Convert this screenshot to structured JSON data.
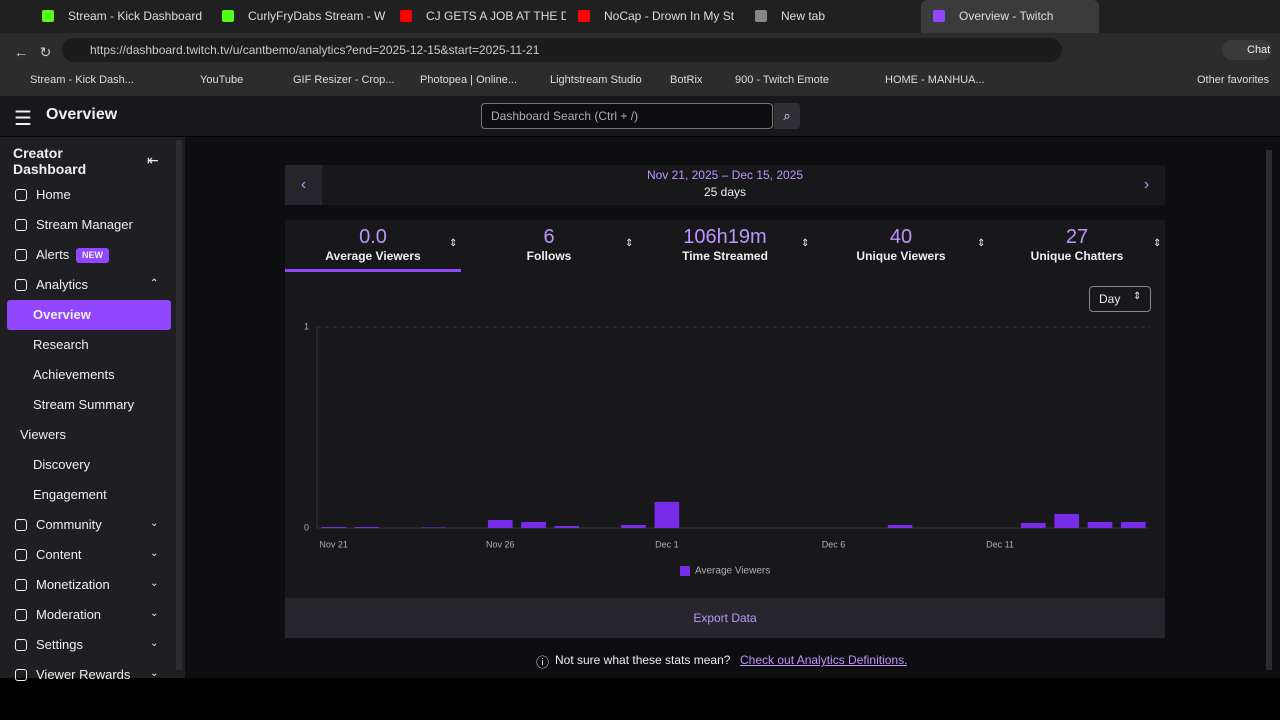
{
  "browser": {
    "tabs": [
      "Stream - Kick Dashboard",
      "CurlyFryDabs Stream - W",
      "CJ GETS A JOB AT THE DEALE",
      "NoCap - Drown In My St",
      "New tab",
      "Overview - Twitch"
    ],
    "url": "https://dashboard.twitch.tv/u/cantbemo/analytics?end=2025-12-15&start=2025-11-21",
    "chat": "Chat",
    "bookmarks": [
      "Stream - Kick Dash...",
      "YouTube",
      "GIF Resizer - Crop...",
      "Photopea | Online...",
      "Lightstream Studio",
      "BotRix",
      "900 - Twitch Emote",
      "HOME - MANHUA..."
    ],
    "other_favorites": "Other favorites"
  },
  "header": {
    "title": "Overview",
    "search_placeholder": "Dashboard Search (Ctrl + /)"
  },
  "sidebar": {
    "title": "Creator Dashboard",
    "items": [
      "Home",
      "Stream Manager",
      "Alerts",
      "Analytics",
      "Overview",
      "Research",
      "Achievements",
      "Stream Summary",
      "Viewers",
      "Discovery",
      "Engagement",
      "Community",
      "Content",
      "Monetization",
      "Moderation",
      "Settings",
      "Viewer Rewards"
    ],
    "badge": "NEW"
  },
  "date_range": {
    "range": "Nov 21, 2025 – Dec 15, 2025",
    "days": "25 days"
  },
  "stats": [
    {
      "value": "0.0",
      "label": "Average Viewers"
    },
    {
      "value": 6,
      "label": "Follows"
    },
    {
      "value": "106h19m",
      "label": "Time Streamed"
    },
    {
      "value": 40,
      "label": "Unique Viewers"
    },
    {
      "value": 27,
      "label": "Unique Chatters"
    }
  ],
  "interval": "Day",
  "chart_data": {
    "type": "bar",
    "categories": [
      "Nov 21",
      null,
      null,
      null,
      null,
      "Nov 26",
      null,
      null,
      null,
      null,
      "Dec 1",
      null,
      null,
      null,
      null,
      "Dec 6",
      null,
      null,
      null,
      null,
      "Dec 11",
      null,
      null,
      null,
      null
    ],
    "series": [
      {
        "name": "Average Viewers",
        "color": "#772ce8",
        "values": [
          0.005,
          0.005,
          0,
          0.003,
          0,
          0.04,
          0.03,
          0.01,
          0,
          0.015,
          0.13,
          0,
          0,
          0,
          0,
          0,
          0,
          0.015,
          0,
          0,
          0,
          0.025,
          0.07,
          0.03,
          0.03
        ]
      }
    ],
    "ylim": [
      0,
      1
    ],
    "yticks": [
      0,
      1
    ],
    "grid": true
  },
  "export": "Export Data",
  "help": {
    "text": "Not sure what these stats mean?",
    "link": "Check out Analytics Definitions."
  }
}
